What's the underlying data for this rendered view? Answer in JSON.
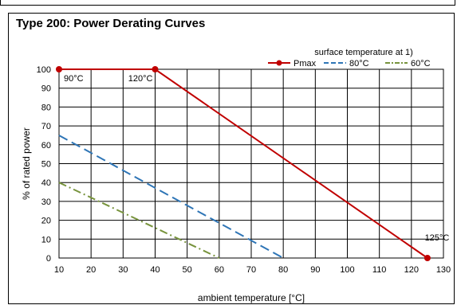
{
  "chart_data": {
    "type": "line",
    "title": "Type 200: Power Derating Curves",
    "xlabel": "ambient temperature [°C]",
    "ylabel": "% of rated power",
    "xlim": [
      10,
      130
    ],
    "ylim": [
      0,
      100
    ],
    "xticks": [
      10,
      20,
      30,
      40,
      50,
      60,
      70,
      80,
      90,
      100,
      110,
      120,
      130
    ],
    "yticks": [
      0,
      10,
      20,
      30,
      40,
      50,
      60,
      70,
      80,
      90,
      100
    ],
    "grid": true,
    "legend_title": "surface temperature at 1)",
    "legend_position": "top-right",
    "series": [
      {
        "name": "Pmax",
        "color": "#c00000",
        "style": "solid",
        "markers": true,
        "points": [
          [
            10,
            100
          ],
          [
            40,
            100
          ],
          [
            125,
            0
          ]
        ]
      },
      {
        "name": "80°C",
        "color": "#2e75b6",
        "style": "dashed",
        "markers": false,
        "points": [
          [
            10,
            65
          ],
          [
            80,
            0
          ]
        ]
      },
      {
        "name": "60°C",
        "color": "#77933c",
        "style": "dashdot",
        "markers": false,
        "points": [
          [
            10,
            40
          ],
          [
            60,
            0
          ]
        ]
      }
    ],
    "annotations": [
      {
        "text": "90°C",
        "x": 10,
        "y": 100
      },
      {
        "text": "120°C",
        "x": 40,
        "y": 100
      },
      {
        "text": "125°C",
        "x": 125,
        "y": 0
      }
    ]
  }
}
